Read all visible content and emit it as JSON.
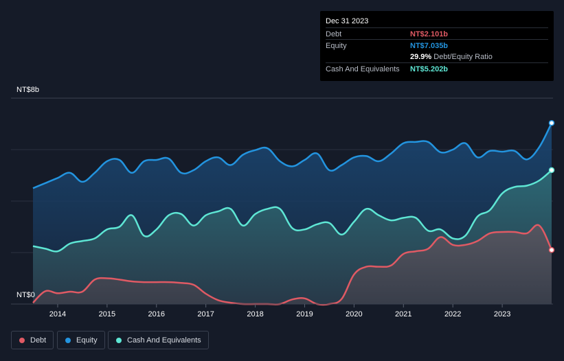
{
  "tooltip": {
    "date": "Dec 31 2023",
    "debt_label": "Debt",
    "debt_value": "NT$2.101b",
    "equity_label": "Equity",
    "equity_value": "NT$7.035b",
    "ratio_value": "29.9%",
    "ratio_label": "Debt/Equity Ratio",
    "cash_label": "Cash And Equivalents",
    "cash_value": "NT$5.202b"
  },
  "legend": {
    "debt": "Debt",
    "equity": "Equity",
    "cash": "Cash And Equivalents"
  },
  "colors": {
    "debt": "#e05a64",
    "equity": "#2394df",
    "cash": "#5ee6d4"
  },
  "chart_data": {
    "type": "area",
    "title": "",
    "ylabel_top": "NT$8b",
    "ylabel_bottom": "NT$0",
    "xlabel": "",
    "ylim": [
      0,
      8
    ],
    "x_ticks": [
      "2014",
      "2015",
      "2016",
      "2017",
      "2018",
      "2019",
      "2020",
      "2021",
      "2022",
      "2023"
    ],
    "series": [
      {
        "name": "Equity",
        "x": [
          2013.5,
          2013.75,
          2014.0,
          2014.25,
          2014.5,
          2014.75,
          2015.0,
          2015.25,
          2015.5,
          2015.75,
          2016.0,
          2016.25,
          2016.5,
          2016.75,
          2017.0,
          2017.25,
          2017.5,
          2017.75,
          2018.0,
          2018.25,
          2018.5,
          2018.75,
          2019.0,
          2019.25,
          2019.5,
          2019.75,
          2020.0,
          2020.25,
          2020.5,
          2020.75,
          2021.0,
          2021.25,
          2021.5,
          2021.75,
          2022.0,
          2022.25,
          2022.5,
          2022.75,
          2023.0,
          2023.25,
          2023.5,
          2023.75,
          2024.0
        ],
        "values": [
          4.5,
          4.7,
          4.9,
          5.1,
          4.75,
          5.1,
          5.55,
          5.6,
          5.1,
          5.55,
          5.6,
          5.65,
          5.1,
          5.2,
          5.55,
          5.7,
          5.4,
          5.8,
          5.98,
          6.05,
          5.55,
          5.35,
          5.6,
          5.85,
          5.2,
          5.4,
          5.7,
          5.75,
          5.55,
          5.85,
          6.25,
          6.3,
          6.3,
          5.9,
          6.0,
          6.25,
          5.7,
          5.95,
          5.92,
          5.95,
          5.62,
          6.1,
          7.035
        ]
      },
      {
        "name": "Cash And Equivalents",
        "x": [
          2013.5,
          2013.75,
          2014.0,
          2014.25,
          2014.5,
          2014.75,
          2015.0,
          2015.25,
          2015.5,
          2015.75,
          2016.0,
          2016.25,
          2016.5,
          2016.75,
          2017.0,
          2017.25,
          2017.5,
          2017.75,
          2018.0,
          2018.25,
          2018.5,
          2018.75,
          2019.0,
          2019.25,
          2019.5,
          2019.75,
          2020.0,
          2020.25,
          2020.5,
          2020.75,
          2021.0,
          2021.25,
          2021.5,
          2021.75,
          2022.0,
          2022.25,
          2022.5,
          2022.75,
          2023.0,
          2023.25,
          2023.5,
          2023.75,
          2024.0
        ],
        "values": [
          2.25,
          2.15,
          2.05,
          2.35,
          2.45,
          2.55,
          2.9,
          3.0,
          3.45,
          2.65,
          2.9,
          3.45,
          3.5,
          3.05,
          3.45,
          3.6,
          3.7,
          3.05,
          3.5,
          3.7,
          3.7,
          2.95,
          2.9,
          3.1,
          3.15,
          2.7,
          3.2,
          3.7,
          3.45,
          3.25,
          3.35,
          3.35,
          2.85,
          2.9,
          2.55,
          2.65,
          3.4,
          3.65,
          4.3,
          4.55,
          4.6,
          4.8,
          5.202
        ]
      },
      {
        "name": "Debt",
        "x": [
          2013.5,
          2013.75,
          2014.0,
          2014.25,
          2014.5,
          2014.75,
          2015.0,
          2015.25,
          2015.5,
          2015.75,
          2016.0,
          2016.25,
          2016.5,
          2016.75,
          2017.0,
          2017.25,
          2017.5,
          2017.75,
          2018.0,
          2018.25,
          2018.5,
          2018.75,
          2019.0,
          2019.25,
          2019.5,
          2019.75,
          2020.0,
          2020.25,
          2020.5,
          2020.75,
          2021.0,
          2021.25,
          2021.5,
          2021.75,
          2022.0,
          2022.25,
          2022.5,
          2022.75,
          2023.0,
          2023.25,
          2023.5,
          2023.75,
          2024.0
        ],
        "values": [
          0.05,
          0.5,
          0.42,
          0.48,
          0.48,
          0.95,
          1.0,
          0.95,
          0.88,
          0.85,
          0.85,
          0.85,
          0.82,
          0.75,
          0.4,
          0.15,
          0.05,
          0.0,
          0.0,
          0.0,
          0.0,
          0.18,
          0.22,
          0.0,
          0.0,
          0.2,
          1.15,
          1.45,
          1.45,
          1.5,
          1.95,
          2.05,
          2.15,
          2.6,
          2.3,
          2.3,
          2.45,
          2.75,
          2.8,
          2.8,
          2.75,
          3.05,
          2.101
        ]
      }
    ]
  }
}
